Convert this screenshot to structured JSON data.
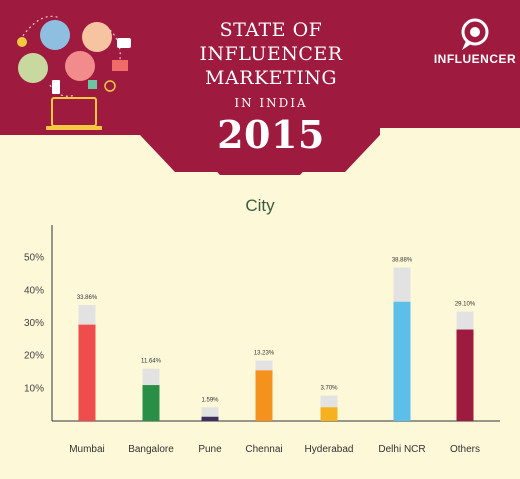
{
  "header": {
    "title_line1": "STATE OF",
    "title_line2": "INFLUENCER MARKETING",
    "title_line3": "IN INDIA",
    "year": "2015",
    "brand": "INFLUENCER",
    "banner_color": "#9e1a3e"
  },
  "chart_data": {
    "type": "bar",
    "title": "City",
    "xlabel": "",
    "ylabel": "",
    "ylim": [
      0,
      60
    ],
    "yticks": [
      "10%",
      "20%",
      "30%",
      "40%",
      "50%"
    ],
    "ytick_values": [
      10,
      20,
      30,
      40,
      50
    ],
    "categories": [
      "Mumbai",
      "Bangalore",
      "Pune",
      "Chennai",
      "Hyderabad",
      "Delhi NCR",
      "Others"
    ],
    "values": [
      33.86,
      11.64,
      1.59,
      13.23,
      3.7,
      38.88,
      29.1
    ],
    "data_labels": [
      "33.86%",
      "11.64%",
      "1.59%",
      "13.23%",
      "3.70%",
      "38.88%",
      "29.10%"
    ],
    "colored_portion": [
      29.5,
      11,
      1.3,
      15.5,
      4.2,
      36.5,
      28
    ],
    "background_bar_values": [
      35.5,
      16,
      4.2,
      18.5,
      7.8,
      47,
      33.5
    ],
    "colors": [
      "#ee4d4d",
      "#2a8f46",
      "#3b2d5e",
      "#f5921e",
      "#f5b21e",
      "#5bbfea",
      "#9e1a3e"
    ],
    "background_bar_color": "#e2e2e2",
    "grid": false
  }
}
